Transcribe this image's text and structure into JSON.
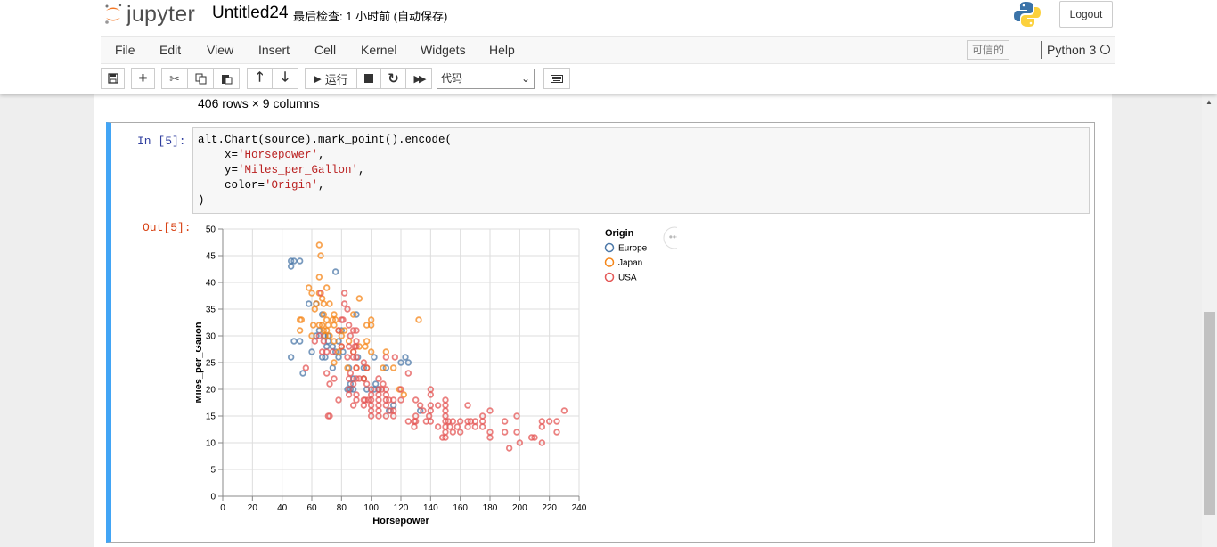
{
  "header": {
    "logo_text": "jupyter",
    "notebook_name": "Untitled24",
    "checkpoint": "最后检查: 1 小时前   (自动保存)",
    "logout": "Logout"
  },
  "menu": {
    "items": [
      "File",
      "Edit",
      "View",
      "Insert",
      "Cell",
      "Kernel",
      "Widgets",
      "Help"
    ],
    "trusted": "可信的",
    "kernel": "Python 3"
  },
  "toolbar": {
    "run_label": "运行",
    "cell_type": "代码",
    "icons": [
      "save-icon",
      "plus-icon",
      "cut-icon",
      "copy-icon",
      "paste-icon",
      "arrow-up-icon",
      "arrow-down-icon",
      "run-icon",
      "stop-icon",
      "restart-icon",
      "fast-forward-icon",
      "keyboard-icon"
    ]
  },
  "output_prev": {
    "rows_text": "406 rows × 9 columns"
  },
  "cell": {
    "in_prompt": "In  [5]:",
    "out_prompt": "Out[5]:",
    "code": {
      "l1": "alt.Chart(source).mark_point().encode(",
      "l2_key": "    x=",
      "l2_val": "'Horsepower'",
      "l2_end": ",",
      "l3_key": "    y=",
      "l3_val": "'Miles_per_Gallon'",
      "l3_end": ",",
      "l4_key": "    color=",
      "l4_val": "'Origin'",
      "l4_end": ",",
      "l5": ")"
    }
  },
  "chart_data": {
    "type": "scatter",
    "xlabel": "Horsepower",
    "ylabel": "Miles_per_Gallon",
    "xlim": [
      0,
      240
    ],
    "ylim": [
      0,
      50
    ],
    "x_ticks": [
      0,
      20,
      40,
      60,
      80,
      100,
      120,
      140,
      160,
      180,
      200,
      220,
      240
    ],
    "y_ticks": [
      0,
      5,
      10,
      15,
      20,
      25,
      30,
      35,
      40,
      45,
      50
    ],
    "grid": true,
    "legend_title": "Origin",
    "legend_position": "right",
    "series": [
      {
        "name": "Europe",
        "color": "#4c78a8",
        "points": [
          [
            46,
            26
          ],
          [
            46,
            43
          ],
          [
            46,
            44
          ],
          [
            48,
            44
          ],
          [
            48,
            29
          ],
          [
            52,
            29
          ],
          [
            52,
            44
          ],
          [
            54,
            23
          ],
          [
            58,
            36
          ],
          [
            60,
            27
          ],
          [
            63,
            30
          ],
          [
            63,
            36
          ],
          [
            65,
            31
          ],
          [
            67,
            26
          ],
          [
            67,
            34
          ],
          [
            69,
            26
          ],
          [
            70,
            28
          ],
          [
            71,
            30
          ],
          [
            71,
            29
          ],
          [
            74,
            28
          ],
          [
            74,
            24
          ],
          [
            76,
            27
          ],
          [
            78,
            29
          ],
          [
            78,
            26
          ],
          [
            80,
            31
          ],
          [
            81,
            27
          ],
          [
            85,
            24
          ],
          [
            86,
            21
          ],
          [
            88,
            22
          ],
          [
            88,
            20
          ],
          [
            90,
            34
          ],
          [
            91,
            26
          ],
          [
            95,
            24
          ],
          [
            97,
            20
          ],
          [
            102,
            26
          ],
          [
            102,
            20
          ],
          [
            103,
            21
          ],
          [
            105,
            20
          ],
          [
            110,
            24
          ],
          [
            112,
            16
          ],
          [
            115,
            17
          ],
          [
            120,
            25
          ],
          [
            123,
            26
          ],
          [
            125,
            25
          ],
          [
            133,
            16
          ],
          [
            76,
            42
          ],
          [
            86,
            20
          ],
          [
            68,
            30
          ],
          [
            84,
            20
          ],
          [
            95,
            22
          ]
        ]
      },
      {
        "name": "Japan",
        "color": "#f58518",
        "points": [
          [
            52,
            33
          ],
          [
            53,
            33
          ],
          [
            58,
            39
          ],
          [
            60,
            38
          ],
          [
            61,
            32
          ],
          [
            62,
            35
          ],
          [
            63,
            36
          ],
          [
            65,
            47
          ],
          [
            65,
            41
          ],
          [
            65,
            38
          ],
          [
            65,
            32
          ],
          [
            66,
            45
          ],
          [
            67,
            32
          ],
          [
            67,
            37
          ],
          [
            68,
            34
          ],
          [
            68,
            31
          ],
          [
            68,
            36
          ],
          [
            69,
            30
          ],
          [
            70,
            33
          ],
          [
            70,
            39
          ],
          [
            70,
            31
          ],
          [
            71,
            32
          ],
          [
            72,
            30
          ],
          [
            72,
            36
          ],
          [
            74,
            33
          ],
          [
            75,
            25
          ],
          [
            75,
            29
          ],
          [
            75,
            34
          ],
          [
            76,
            33
          ],
          [
            78,
            27
          ],
          [
            78,
            31
          ],
          [
            80,
            30
          ],
          [
            80,
            28
          ],
          [
            82,
            31
          ],
          [
            84,
            24
          ],
          [
            85,
            29
          ],
          [
            88,
            27
          ],
          [
            88,
            34
          ],
          [
            90,
            24
          ],
          [
            92,
            37
          ],
          [
            92,
            28
          ],
          [
            95,
            22
          ],
          [
            96,
            28
          ],
          [
            97,
            32
          ],
          [
            97,
            29
          ],
          [
            97,
            24
          ],
          [
            100,
            27
          ],
          [
            100,
            33
          ],
          [
            100,
            32
          ],
          [
            108,
            24
          ],
          [
            110,
            27
          ],
          [
            115,
            24
          ],
          [
            119,
            20
          ],
          [
            122,
            19
          ],
          [
            132,
            33
          ],
          [
            52,
            31
          ],
          [
            60,
            30
          ],
          [
            75,
            32
          ]
        ]
      },
      {
        "name": "USA",
        "color": "#e45756",
        "points": [
          [
            56,
            24
          ],
          [
            62,
            29
          ],
          [
            65,
            30
          ],
          [
            66,
            38
          ],
          [
            67,
            27
          ],
          [
            68,
            29
          ],
          [
            70,
            27
          ],
          [
            70,
            23
          ],
          [
            71,
            15
          ],
          [
            72,
            15
          ],
          [
            72,
            21
          ],
          [
            74,
            27
          ],
          [
            75,
            22
          ],
          [
            78,
            18
          ],
          [
            78,
            31
          ],
          [
            80,
            33
          ],
          [
            80,
            28
          ],
          [
            81,
            33
          ],
          [
            82,
            38
          ],
          [
            82,
            36
          ],
          [
            84,
            26
          ],
          [
            84,
            35
          ],
          [
            85,
            22
          ],
          [
            85,
            28
          ],
          [
            85,
            32
          ],
          [
            85,
            19
          ],
          [
            85,
            20
          ],
          [
            86,
            23
          ],
          [
            86,
            30
          ],
          [
            88,
            26
          ],
          [
            88,
            17
          ],
          [
            88,
            21
          ],
          [
            88,
            27
          ],
          [
            88,
            31
          ],
          [
            89,
            28
          ],
          [
            90,
            19
          ],
          [
            90,
            22
          ],
          [
            90,
            28
          ],
          [
            90,
            29
          ],
          [
            90,
            31
          ],
          [
            90,
            18
          ],
          [
            90,
            24
          ],
          [
            90,
            26
          ],
          [
            92,
            22
          ],
          [
            95,
            18
          ],
          [
            95,
            25
          ],
          [
            95,
            22
          ],
          [
            95,
            17
          ],
          [
            96,
            18
          ],
          [
            97,
            21
          ],
          [
            97,
            24
          ],
          [
            98,
            18
          ],
          [
            100,
            16
          ],
          [
            100,
            18
          ],
          [
            100,
            17
          ],
          [
            100,
            20
          ],
          [
            100,
            19
          ],
          [
            100,
            15
          ],
          [
            105,
            19
          ],
          [
            105,
            18
          ],
          [
            105,
            20
          ],
          [
            105,
            22
          ],
          [
            105,
            16
          ],
          [
            105,
            17
          ],
          [
            105,
            15
          ],
          [
            107,
            20
          ],
          [
            108,
            21
          ],
          [
            110,
            18
          ],
          [
            110,
            19
          ],
          [
            110,
            20
          ],
          [
            110,
            15
          ],
          [
            110,
            17
          ],
          [
            110,
            26
          ],
          [
            112,
            18
          ],
          [
            113,
            16
          ],
          [
            115,
            18
          ],
          [
            115,
            16
          ],
          [
            115,
            15
          ],
          [
            116,
            26
          ],
          [
            120,
            18
          ],
          [
            120,
            20
          ],
          [
            125,
            14
          ],
          [
            125,
            23
          ],
          [
            129,
            13
          ],
          [
            129,
            14
          ],
          [
            130,
            15
          ],
          [
            130,
            14
          ],
          [
            130,
            18
          ],
          [
            133,
            17
          ],
          [
            135,
            16
          ],
          [
            137,
            14
          ],
          [
            139,
            15
          ],
          [
            140,
            16
          ],
          [
            140,
            14
          ],
          [
            140,
            17
          ],
          [
            140,
            19
          ],
          [
            140,
            20
          ],
          [
            145,
            13
          ],
          [
            145,
            17
          ],
          [
            148,
            11
          ],
          [
            150,
            12
          ],
          [
            150,
            13
          ],
          [
            150,
            14
          ],
          [
            150,
            15
          ],
          [
            150,
            16
          ],
          [
            150,
            17
          ],
          [
            150,
            18
          ],
          [
            150,
            11
          ],
          [
            152,
            14
          ],
          [
            153,
            13
          ],
          [
            155,
            14
          ],
          [
            155,
            12
          ],
          [
            158,
            13
          ],
          [
            160,
            12
          ],
          [
            160,
            14
          ],
          [
            165,
            13
          ],
          [
            165,
            14
          ],
          [
            165,
            17
          ],
          [
            167,
            14
          ],
          [
            170,
            13
          ],
          [
            170,
            14
          ],
          [
            175,
            13
          ],
          [
            175,
            14
          ],
          [
            175,
            15
          ],
          [
            180,
            12
          ],
          [
            180,
            16
          ],
          [
            180,
            11
          ],
          [
            190,
            12
          ],
          [
            190,
            14
          ],
          [
            193,
            9
          ],
          [
            198,
            15
          ],
          [
            198,
            12
          ],
          [
            200,
            10
          ],
          [
            208,
            11
          ],
          [
            210,
            11
          ],
          [
            215,
            13
          ],
          [
            215,
            14
          ],
          [
            215,
            10
          ],
          [
            220,
            14
          ],
          [
            225,
            14
          ],
          [
            225,
            12
          ],
          [
            230,
            16
          ]
        ]
      }
    ]
  }
}
